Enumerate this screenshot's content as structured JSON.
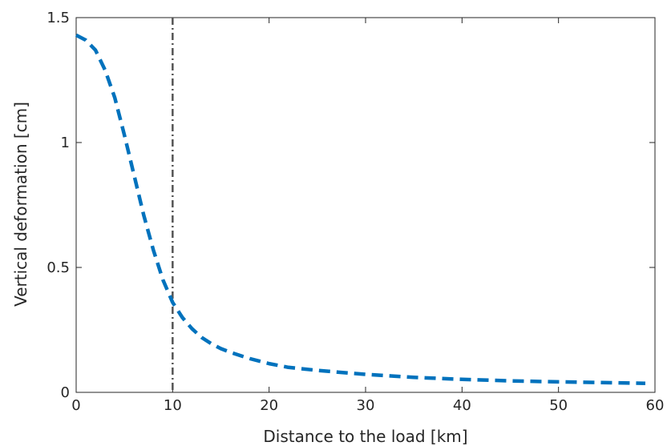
{
  "chart_data": {
    "type": "line",
    "title": "",
    "xlabel": "Distance to the load [km]",
    "ylabel": "Vertical deformation [cm]",
    "xlim": [
      0,
      60
    ],
    "ylim": [
      0,
      1.5
    ],
    "x_ticks": [
      0,
      10,
      20,
      30,
      40,
      50,
      60
    ],
    "y_ticks": [
      0,
      0.5,
      1,
      1.5
    ],
    "x_tick_labels": [
      "0",
      "10",
      "20",
      "30",
      "40",
      "50",
      "60"
    ],
    "y_tick_labels": [
      "0",
      "0.5",
      "1",
      "1.5"
    ],
    "grid": false,
    "series": [
      {
        "color": "#0072BD",
        "style": "dashed",
        "x": [
          0,
          1,
          2,
          3,
          4,
          5,
          6,
          7,
          8,
          9,
          10,
          11,
          12,
          13,
          14,
          15,
          16,
          18,
          20,
          22,
          25,
          28,
          30,
          35,
          40,
          45,
          50,
          55,
          59
        ],
        "y": [
          1.43,
          1.41,
          1.37,
          1.29,
          1.18,
          1.03,
          0.87,
          0.71,
          0.57,
          0.45,
          0.36,
          0.3,
          0.255,
          0.22,
          0.195,
          0.175,
          0.16,
          0.135,
          0.115,
          0.1,
          0.088,
          0.078,
          0.072,
          0.06,
          0.052,
          0.046,
          0.042,
          0.039,
          0.036
        ]
      }
    ],
    "vertical_line": {
      "x": 10,
      "color": "#555555",
      "style": "dash-dot"
    }
  }
}
